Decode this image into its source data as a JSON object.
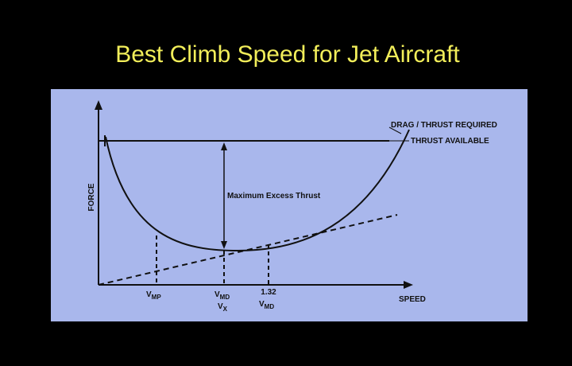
{
  "title": "Best Climb Speed for Jet Aircraft",
  "diagram": {
    "curve_labels": {
      "drag": "DRAG / THRUST REQUIRED",
      "thrust": "THRUST AVAILABLE",
      "excess": "Maximum Excess Thrust"
    },
    "axes": {
      "y": "FORCE",
      "x": "SPEED"
    },
    "speed_labels": {
      "vmp": {
        "main": "V",
        "sub": "MP"
      },
      "vmd": {
        "main": "V",
        "sub": "MD"
      },
      "vx": {
        "main": "V",
        "sub": "X"
      },
      "factor": "1.32",
      "vmd2": {
        "main": "V",
        "sub": "MD"
      }
    }
  }
}
